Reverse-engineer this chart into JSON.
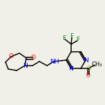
{
  "bg_color": "#f0f0e8",
  "line_color": "#000000",
  "atom_colors": {
    "N": "#0000ff",
    "O": "#ff0000",
    "F": "#008800",
    "S": "#bbaa00"
  },
  "line_width": 1.1,
  "font_size": 6.5,
  "fig_size": [
    1.52,
    1.52
  ],
  "dpi": 100
}
